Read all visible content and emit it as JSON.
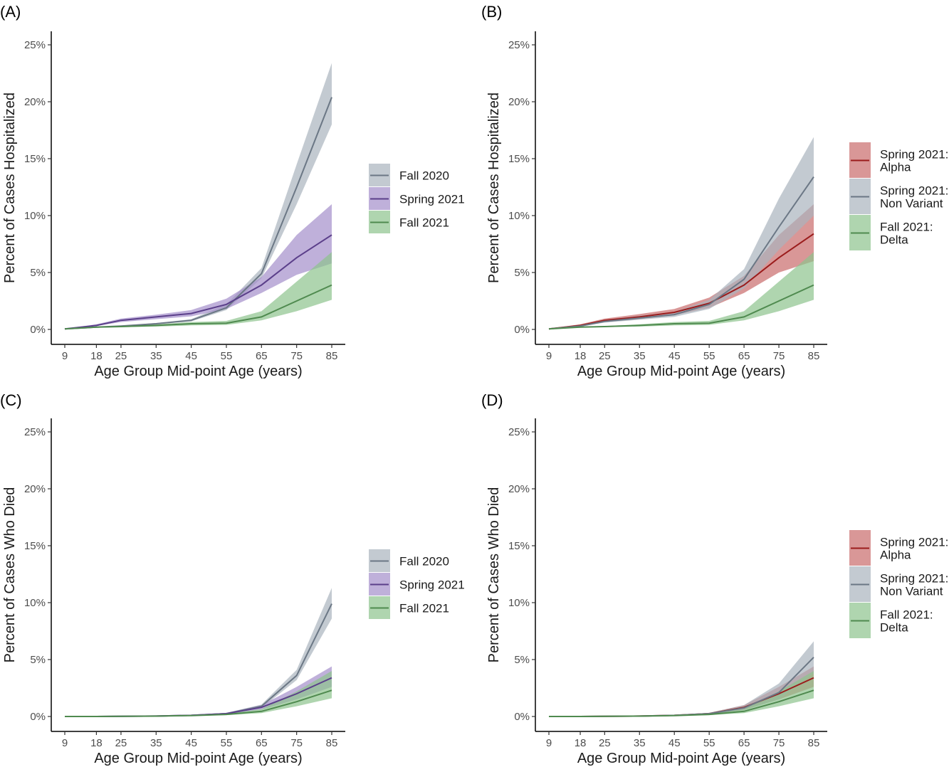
{
  "chart_data": [
    {
      "type": "line",
      "panel_label": "(A)",
      "xlabel": "Age Group Mid-point Age (years)",
      "ylabel": "Percent of Cases Hospitalized",
      "x": [
        9,
        18,
        25,
        35,
        45,
        55,
        65,
        75,
        85
      ],
      "x_ticks": [
        "9",
        "18",
        "25",
        "35",
        "45",
        "55",
        "65",
        "75",
        "85"
      ],
      "ylim": [
        0,
        25
      ],
      "y_ticks": [
        "0%",
        "5%",
        "10%",
        "15%",
        "20%",
        "25%"
      ],
      "grid": false,
      "legend_position": "right",
      "series": [
        {
          "name": "Fall 2020",
          "color": "#6b7785",
          "fill": "#a9b3bd",
          "values": [
            0.05,
            0.2,
            0.3,
            0.5,
            0.8,
            1.9,
            4.9,
            12.5,
            20.4
          ],
          "lower": [
            0.04,
            0.18,
            0.27,
            0.45,
            0.7,
            1.7,
            4.5,
            11.0,
            18.0
          ],
          "upper": [
            0.07,
            0.23,
            0.34,
            0.56,
            0.9,
            2.2,
            5.4,
            14.5,
            23.4
          ]
        },
        {
          "name": "Spring 2021",
          "color": "#5b3f8a",
          "fill": "#a48fcb",
          "values": [
            0.05,
            0.35,
            0.8,
            1.1,
            1.4,
            2.2,
            3.9,
            6.3,
            8.3
          ],
          "lower": [
            0.03,
            0.3,
            0.65,
            0.9,
            1.15,
            1.8,
            3.2,
            4.8,
            5.8
          ],
          "upper": [
            0.07,
            0.45,
            0.95,
            1.3,
            1.7,
            2.7,
            4.6,
            8.3,
            11.0
          ]
        },
        {
          "name": "Fall 2021",
          "color": "#4f8a4f",
          "fill": "#8dc38d",
          "values": [
            0.05,
            0.2,
            0.25,
            0.35,
            0.5,
            0.55,
            1.1,
            2.5,
            3.9
          ],
          "lower": [
            0.03,
            0.15,
            0.2,
            0.25,
            0.35,
            0.4,
            0.8,
            1.6,
            2.6
          ],
          "upper": [
            0.07,
            0.25,
            0.3,
            0.45,
            0.65,
            0.75,
            1.6,
            4.2,
            6.8
          ]
        }
      ]
    },
    {
      "type": "line",
      "panel_label": "(B)",
      "xlabel": "Age Group Mid-point Age (years)",
      "ylabel": "Percent of Cases Hospitalized",
      "x": [
        9,
        18,
        25,
        35,
        45,
        55,
        65,
        75,
        85
      ],
      "x_ticks": [
        "9",
        "18",
        "25",
        "35",
        "45",
        "55",
        "65",
        "75",
        "85"
      ],
      "ylim": [
        0,
        25
      ],
      "y_ticks": [
        "0%",
        "5%",
        "10%",
        "15%",
        "20%",
        "25%"
      ],
      "grid": false,
      "legend_position": "right",
      "series": [
        {
          "name": "Spring 2021:\nAlpha",
          "color": "#9b1c1c",
          "fill": "#c96b6b",
          "values": [
            0.05,
            0.35,
            0.8,
            1.1,
            1.5,
            2.3,
            3.9,
            6.3,
            8.4
          ],
          "lower": [
            0.03,
            0.3,
            0.65,
            0.9,
            1.25,
            1.9,
            3.2,
            5.0,
            6.0
          ],
          "upper": [
            0.07,
            0.45,
            0.95,
            1.35,
            1.8,
            2.8,
            4.7,
            8.3,
            11.0
          ]
        },
        {
          "name": "Spring 2021:\nNon Variant",
          "color": "#6b7785",
          "fill": "#a9b3bd",
          "values": [
            0.05,
            0.3,
            0.7,
            1.0,
            1.3,
            2.2,
            4.4,
            9.0,
            13.4
          ],
          "lower": [
            0.03,
            0.25,
            0.6,
            0.85,
            1.1,
            1.8,
            3.6,
            7.0,
            10.0
          ],
          "upper": [
            0.07,
            0.38,
            0.85,
            1.2,
            1.55,
            2.6,
            5.3,
            11.5,
            16.9
          ]
        },
        {
          "name": "Fall 2021:\nDelta",
          "color": "#4f8a4f",
          "fill": "#8dc38d",
          "values": [
            0.05,
            0.2,
            0.25,
            0.35,
            0.5,
            0.55,
            1.1,
            2.5,
            3.9
          ],
          "lower": [
            0.03,
            0.15,
            0.2,
            0.25,
            0.35,
            0.4,
            0.8,
            1.6,
            2.6
          ],
          "upper": [
            0.07,
            0.25,
            0.3,
            0.45,
            0.65,
            0.75,
            1.6,
            4.2,
            6.8
          ]
        }
      ]
    },
    {
      "type": "line",
      "panel_label": "(C)",
      "xlabel": "Age Group Mid-point Age (years)",
      "ylabel": "Percent of Cases Who Died",
      "x": [
        9,
        18,
        25,
        35,
        45,
        55,
        65,
        75,
        85
      ],
      "x_ticks": [
        "9",
        "18",
        "25",
        "35",
        "45",
        "55",
        "65",
        "75",
        "85"
      ],
      "ylim": [
        0,
        25
      ],
      "y_ticks": [
        "0%",
        "5%",
        "10%",
        "15%",
        "20%",
        "25%"
      ],
      "grid": false,
      "legend_position": "right",
      "series": [
        {
          "name": "Fall 2020",
          "color": "#6b7785",
          "fill": "#a9b3bd",
          "values": [
            0.0,
            0.0,
            0.02,
            0.04,
            0.1,
            0.25,
            0.9,
            3.6,
            9.9
          ],
          "lower": [
            0.0,
            0.0,
            0.01,
            0.03,
            0.08,
            0.2,
            0.75,
            3.2,
            8.6
          ],
          "upper": [
            0.0,
            0.01,
            0.03,
            0.06,
            0.13,
            0.32,
            1.05,
            4.1,
            11.3
          ]
        },
        {
          "name": "Spring 2021",
          "color": "#5b3f8a",
          "fill": "#a48fcb",
          "values": [
            0.0,
            0.0,
            0.02,
            0.04,
            0.1,
            0.25,
            0.8,
            2.0,
            3.4
          ],
          "lower": [
            0.0,
            0.0,
            0.01,
            0.03,
            0.07,
            0.18,
            0.6,
            1.5,
            2.6
          ],
          "upper": [
            0.0,
            0.01,
            0.03,
            0.06,
            0.13,
            0.32,
            1.0,
            2.6,
            4.4
          ]
        },
        {
          "name": "Fall 2021",
          "color": "#4f8a4f",
          "fill": "#8dc38d",
          "values": [
            0.0,
            0.0,
            0.01,
            0.03,
            0.08,
            0.18,
            0.45,
            1.3,
            2.3
          ],
          "lower": [
            0.0,
            0.0,
            0.0,
            0.02,
            0.05,
            0.12,
            0.3,
            0.9,
            1.6
          ],
          "upper": [
            0.0,
            0.01,
            0.02,
            0.05,
            0.11,
            0.25,
            0.65,
            2.2,
            4.0
          ]
        }
      ]
    },
    {
      "type": "line",
      "panel_label": "(D)",
      "xlabel": "Age Group Mid-point Age (years)",
      "ylabel": "Percent of Cases Who Died",
      "x": [
        9,
        18,
        25,
        35,
        45,
        55,
        65,
        75,
        85
      ],
      "x_ticks": [
        "9",
        "18",
        "25",
        "35",
        "45",
        "55",
        "65",
        "75",
        "85"
      ],
      "ylim": [
        0,
        25
      ],
      "y_ticks": [
        "0%",
        "5%",
        "10%",
        "15%",
        "20%",
        "25%"
      ],
      "grid": false,
      "legend_position": "right",
      "series": [
        {
          "name": "Spring 2021:\nAlpha",
          "color": "#9b1c1c",
          "fill": "#c96b6b",
          "values": [
            0.0,
            0.0,
            0.02,
            0.04,
            0.1,
            0.25,
            0.8,
            2.0,
            3.4
          ],
          "lower": [
            0.0,
            0.0,
            0.01,
            0.03,
            0.07,
            0.18,
            0.6,
            1.5,
            2.6
          ],
          "upper": [
            0.0,
            0.01,
            0.03,
            0.06,
            0.13,
            0.32,
            1.0,
            2.6,
            4.4
          ]
        },
        {
          "name": "Spring 2021:\nNon Variant",
          "color": "#6b7785",
          "fill": "#a9b3bd",
          "values": [
            0.0,
            0.0,
            0.02,
            0.04,
            0.1,
            0.25,
            0.75,
            2.1,
            5.2
          ],
          "lower": [
            0.0,
            0.0,
            0.01,
            0.03,
            0.07,
            0.18,
            0.55,
            1.5,
            3.8
          ],
          "upper": [
            0.0,
            0.01,
            0.03,
            0.06,
            0.13,
            0.32,
            1.0,
            2.9,
            6.6
          ]
        },
        {
          "name": "Fall 2021:\nDelta",
          "color": "#4f8a4f",
          "fill": "#8dc38d",
          "values": [
            0.0,
            0.0,
            0.01,
            0.03,
            0.08,
            0.18,
            0.45,
            1.3,
            2.3
          ],
          "lower": [
            0.0,
            0.0,
            0.0,
            0.02,
            0.05,
            0.12,
            0.3,
            0.9,
            1.6
          ],
          "upper": [
            0.0,
            0.01,
            0.02,
            0.05,
            0.11,
            0.25,
            0.65,
            2.2,
            4.0
          ]
        }
      ]
    }
  ]
}
